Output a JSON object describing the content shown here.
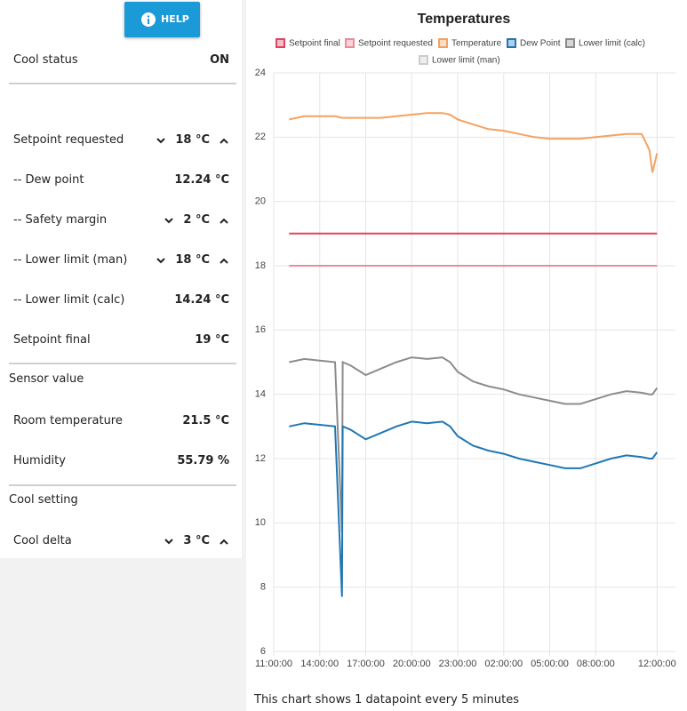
{
  "help_button": "HELP",
  "status": {
    "label": "Cool status",
    "value": "ON"
  },
  "cooling": [
    {
      "label": "Setpoint requested",
      "value": "18 °C"
    },
    {
      "label": "-- Dew point",
      "value": "12.24 °C"
    },
    {
      "label": "-- Safety margin",
      "value": "2 °C"
    },
    {
      "label": "-- Lower limit (man)",
      "value": "18 °C"
    },
    {
      "label": "-- Lower limit (calc)",
      "value": "14.24 °C"
    },
    {
      "label": "Setpoint final",
      "value": "19 °C"
    }
  ],
  "sensor": {
    "heading": "Sensor value",
    "rows": [
      {
        "label": "Room temperature",
        "value": "21.5 °C"
      },
      {
        "label": "Humidity",
        "value": "55.79 %"
      }
    ]
  },
  "setting": {
    "heading": "Cool setting",
    "rows": [
      {
        "label": "Cool delta",
        "value": "3 °C"
      }
    ]
  },
  "footnote": "This chart shows 1 datapoint every 5 minutes",
  "chart_data": {
    "type": "line",
    "title": "Temperatures",
    "x": [
      1,
      2,
      3,
      4,
      4.45,
      4.5,
      5,
      6,
      7,
      8,
      9,
      10,
      11,
      11.5,
      12,
      13,
      14,
      15,
      16,
      17,
      18,
      19,
      20,
      21,
      22,
      23,
      24,
      24.5,
      24.7,
      25
    ],
    "xlim": [
      0,
      26.2
    ],
    "xticks": [
      {
        "value": 0,
        "label": "11:00:00"
      },
      {
        "value": 3,
        "label": "14:00:00"
      },
      {
        "value": 6,
        "label": "17:00:00"
      },
      {
        "value": 9,
        "label": "20:00:00"
      },
      {
        "value": 12,
        "label": "23:00:00"
      },
      {
        "value": 15,
        "label": "02:00:00"
      },
      {
        "value": 18,
        "label": "05:00:00"
      },
      {
        "value": 21,
        "label": "08:00:00"
      },
      {
        "value": 25,
        "label": "12:00:00"
      }
    ],
    "ylim": [
      6,
      24
    ],
    "yticks": [
      6,
      8,
      10,
      12,
      14,
      16,
      18,
      20,
      22,
      24
    ],
    "grid": true,
    "series": [
      {
        "name": "Setpoint final",
        "color": "#e0435f",
        "values": [
          19,
          19,
          19,
          19,
          19,
          19,
          19,
          19,
          19,
          19,
          19,
          19,
          19,
          19,
          19,
          19,
          19,
          19,
          19,
          19,
          19,
          19,
          19,
          19,
          19,
          19,
          19,
          19,
          19,
          19
        ]
      },
      {
        "name": "Setpoint requested",
        "color": "#ef8a9b",
        "values": [
          18,
          18,
          18,
          18,
          18,
          18,
          18,
          18,
          18,
          18,
          18,
          18,
          18,
          18,
          18,
          18,
          18,
          18,
          18,
          18,
          18,
          18,
          18,
          18,
          18,
          18,
          18,
          18,
          18,
          18
        ]
      },
      {
        "name": "Temperature",
        "color": "#f4a261",
        "values": [
          22.55,
          22.65,
          22.65,
          22.65,
          22.6,
          22.6,
          22.6,
          22.6,
          22.6,
          22.65,
          22.7,
          22.75,
          22.75,
          22.7,
          22.55,
          22.4,
          22.25,
          22.2,
          22.1,
          22.0,
          21.95,
          21.95,
          21.95,
          22.0,
          22.05,
          22.1,
          22.1,
          21.6,
          20.9,
          21.5
        ]
      },
      {
        "name": "Dew Point",
        "color": "#1f77b4",
        "values": [
          13.0,
          13.1,
          13.05,
          13.0,
          7.7,
          13.0,
          12.9,
          12.6,
          12.8,
          13.0,
          13.15,
          13.1,
          13.15,
          13.0,
          12.7,
          12.4,
          12.25,
          12.15,
          12.0,
          11.9,
          11.8,
          11.7,
          11.7,
          11.85,
          12.0,
          12.1,
          12.05,
          12.0,
          12.0,
          12.2
        ]
      },
      {
        "name": "Lower limit (calc)",
        "color": "#8c8c8c",
        "values": [
          15.0,
          15.1,
          15.05,
          15.0,
          9.7,
          15.0,
          14.9,
          14.6,
          14.8,
          15.0,
          15.15,
          15.1,
          15.15,
          15.0,
          14.7,
          14.4,
          14.25,
          14.15,
          14.0,
          13.9,
          13.8,
          13.7,
          13.7,
          13.85,
          14.0,
          14.1,
          14.05,
          14.0,
          14.0,
          14.2
        ]
      },
      {
        "name": "Lower limit (man)",
        "color": "#cccccc",
        "values": [
          18,
          18,
          18,
          18,
          18,
          18,
          18,
          18,
          18,
          18,
          18,
          18,
          18,
          18,
          18,
          18,
          18,
          18,
          18,
          18,
          18,
          18,
          18,
          18,
          18,
          18,
          18,
          18,
          18,
          18
        ]
      }
    ]
  }
}
